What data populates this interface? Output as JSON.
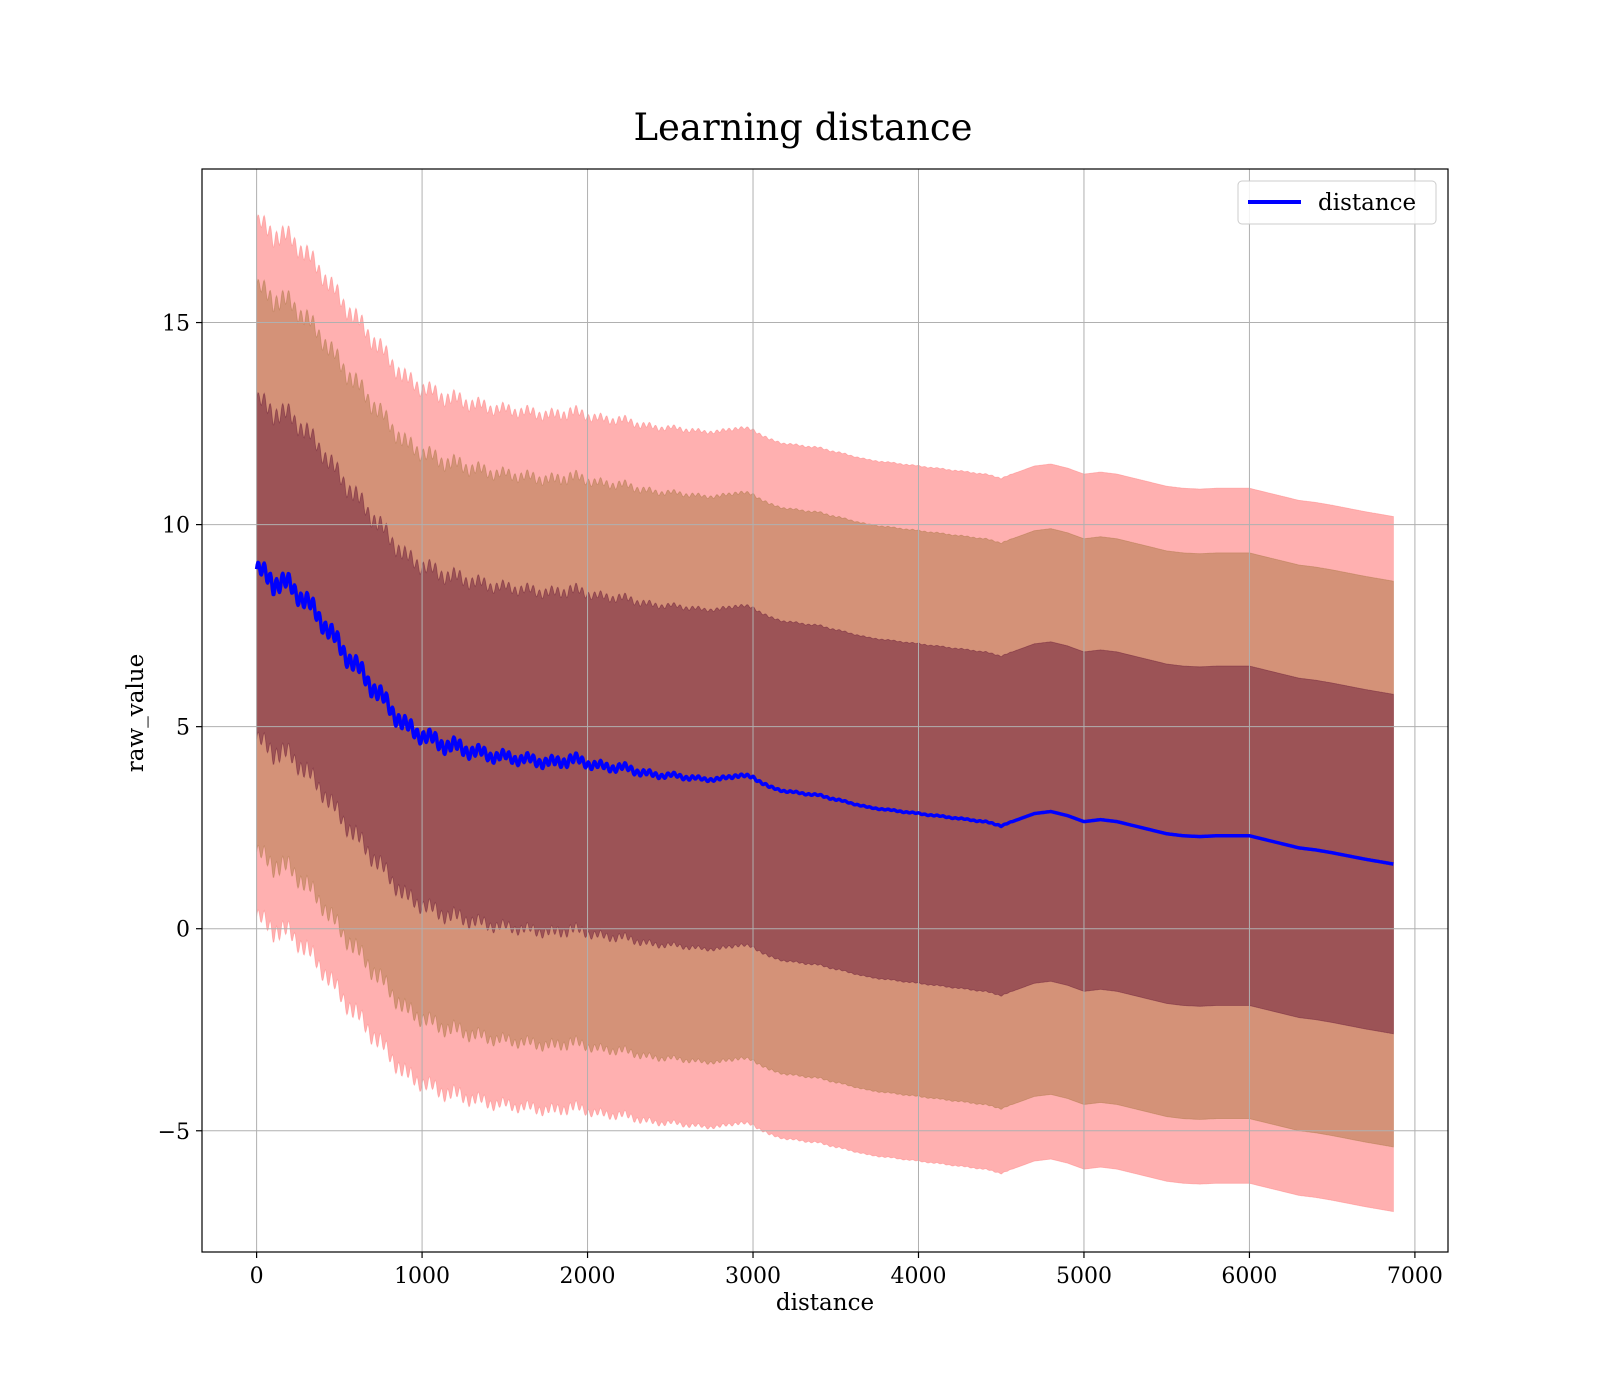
{
  "chart_data": {
    "type": "line",
    "title": "Learning distance",
    "xlabel": "distance",
    "ylabel": "raw_value",
    "xlim": [
      -330,
      7200
    ],
    "ylim": [
      -8,
      18.8
    ],
    "xticks": [
      0,
      1000,
      2000,
      3000,
      4000,
      5000,
      6000,
      7000
    ],
    "xtick_labels": [
      "0",
      "1000",
      "2000",
      "3000",
      "4000",
      "5000",
      "6000",
      "7000"
    ],
    "yticks": [
      -5,
      0,
      5,
      10,
      15
    ],
    "ytick_labels": [
      "−5",
      "0",
      "5",
      "10",
      "15"
    ],
    "grid": true,
    "legend": {
      "position": "top-right",
      "entries": [
        "distance"
      ]
    },
    "colors": {
      "line": "#0000ff",
      "band": "#ff0000",
      "band_inner": "#4b0a3c",
      "grid": "#b0b0b0"
    },
    "series": [
      {
        "name": "distance",
        "x": [
          0,
          100,
          200,
          300,
          400,
          500,
          600,
          700,
          800,
          900,
          1000,
          1100,
          1200,
          1300,
          1400,
          1500,
          1600,
          1700,
          1800,
          1900,
          2000,
          2100,
          2200,
          2300,
          2400,
          2500,
          2600,
          2700,
          2800,
          2900,
          3000,
          3100,
          3200,
          3300,
          3400,
          3500,
          3600,
          3700,
          3800,
          3900,
          4000,
          4100,
          4200,
          4300,
          4400,
          4500,
          4600,
          4700,
          4800,
          4900,
          5000,
          5100,
          5200,
          5300,
          5400,
          5500,
          5600,
          5700,
          5800,
          5900,
          6000,
          6100,
          6200,
          6300,
          6400,
          6500,
          6600,
          6700,
          6800,
          6870
        ],
        "y": [
          8.9,
          8.6,
          8.5,
          8.1,
          7.6,
          7.0,
          6.5,
          6.0,
          5.5,
          5.0,
          4.8,
          4.6,
          4.5,
          4.4,
          4.3,
          4.25,
          4.2,
          4.15,
          4.1,
          4.2,
          4.1,
          4.0,
          4.0,
          3.9,
          3.8,
          3.8,
          3.75,
          3.7,
          3.7,
          3.8,
          3.75,
          3.5,
          3.4,
          3.35,
          3.3,
          3.2,
          3.1,
          3.0,
          2.95,
          2.9,
          2.85,
          2.8,
          2.75,
          2.7,
          2.65,
          2.55,
          2.7,
          2.85,
          2.9,
          2.8,
          2.65,
          2.7,
          2.65,
          2.55,
          2.45,
          2.35,
          2.3,
          2.28,
          2.3,
          2.3,
          2.3,
          2.2,
          2.1,
          2.0,
          1.95,
          1.88,
          1.8,
          1.72,
          1.65,
          1.6
        ],
        "noise": [
          0.25,
          0.35,
          0.3,
          0.3,
          0.3,
          0.3,
          0.3,
          0.3,
          0.28,
          0.28,
          0.25,
          0.25,
          0.25,
          0.22,
          0.2,
          0.18,
          0.18,
          0.18,
          0.18,
          0.2,
          0.15,
          0.14,
          0.14,
          0.12,
          0.1,
          0.08,
          0.08,
          0.06,
          0.06,
          0.06,
          0.05,
          0.04,
          0.03,
          0.03,
          0.03,
          0.03,
          0.02,
          0.02,
          0.02,
          0.02,
          0.02,
          0.02,
          0.02,
          0.02,
          0.02,
          0.02,
          0,
          0,
          0,
          0,
          0,
          0,
          0,
          0,
          0,
          0,
          0,
          0,
          0,
          0,
          0,
          0,
          0,
          0,
          0,
          0,
          0,
          0,
          0,
          0
        ]
      }
    ],
    "bands": [
      {
        "offset_start": 4.2,
        "offset_end": 4.2
      },
      {
        "offset_start": 7.0,
        "offset_end": 7.0
      },
      {
        "offset_start": 8.6,
        "offset_end": 8.6
      }
    ]
  }
}
